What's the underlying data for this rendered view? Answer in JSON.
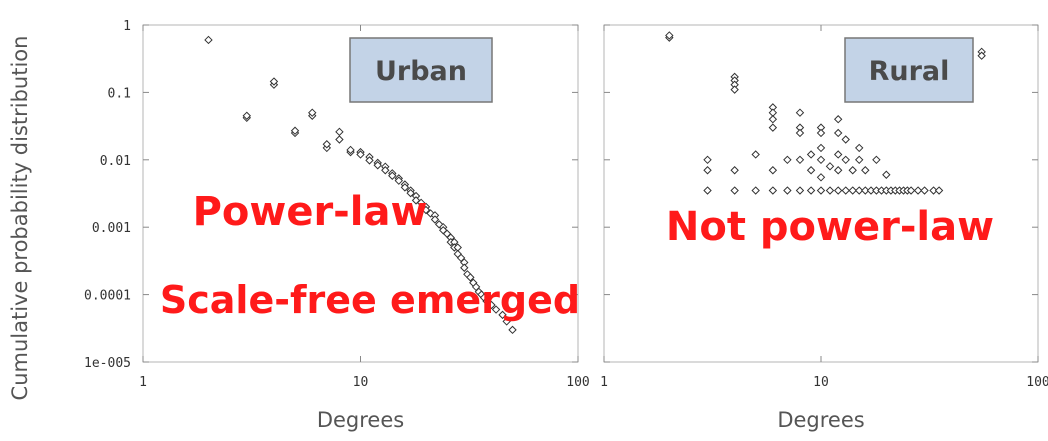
{
  "y_axis_label": "Cumulative probability distribution",
  "chart_data": [
    {
      "type": "scatter",
      "panel": "left",
      "region_label": "Urban",
      "annotations": [
        "Power-law",
        "Scale-free emerged"
      ],
      "xlabel": "Degrees",
      "x_scale": "log",
      "y_scale": "log",
      "xlim": [
        1,
        100
      ],
      "ylim": [
        1e-05,
        1
      ],
      "x_ticks": [
        "1",
        "10",
        "100"
      ],
      "y_ticks": [
        "1",
        "0.1",
        "0.01",
        "0.001",
        "0.0001",
        "1e-005"
      ],
      "grid": false,
      "points": [
        [
          2,
          0.6
        ],
        [
          3,
          0.042
        ],
        [
          3,
          0.045
        ],
        [
          4,
          0.13
        ],
        [
          4,
          0.145
        ],
        [
          5,
          0.025
        ],
        [
          5,
          0.027
        ],
        [
          6,
          0.045
        ],
        [
          6,
          0.05
        ],
        [
          7,
          0.015
        ],
        [
          7,
          0.017
        ],
        [
          8,
          0.02
        ],
        [
          8,
          0.026
        ],
        [
          9,
          0.013
        ],
        [
          9,
          0.014
        ],
        [
          10,
          0.013
        ],
        [
          10,
          0.012
        ],
        [
          11,
          0.011
        ],
        [
          11,
          0.0098
        ],
        [
          12,
          0.009
        ],
        [
          12,
          0.0083
        ],
        [
          13,
          0.0079
        ],
        [
          13,
          0.007
        ],
        [
          14,
          0.0063
        ],
        [
          14,
          0.0058
        ],
        [
          15,
          0.0053
        ],
        [
          15,
          0.0049
        ],
        [
          16,
          0.0043
        ],
        [
          16,
          0.0039
        ],
        [
          17,
          0.0035
        ],
        [
          17,
          0.0032
        ],
        [
          18,
          0.0029
        ],
        [
          18,
          0.0025
        ],
        [
          19,
          0.0023
        ],
        [
          20,
          0.002
        ],
        [
          20,
          0.0018
        ],
        [
          21,
          0.0016
        ],
        [
          22,
          0.0015
        ],
        [
          22,
          0.0013
        ],
        [
          23,
          0.0011
        ],
        [
          24,
          0.001
        ],
        [
          24,
          0.0009
        ],
        [
          25,
          0.0008
        ],
        [
          26,
          0.0007
        ],
        [
          26,
          0.0006
        ],
        [
          27,
          0.0006
        ],
        [
          27,
          0.0005
        ],
        [
          28,
          0.0005
        ],
        [
          28,
          0.0004
        ],
        [
          29,
          0.00035
        ],
        [
          30,
          0.0003
        ],
        [
          30,
          0.00025
        ],
        [
          31,
          0.0002
        ],
        [
          32,
          0.00018
        ],
        [
          33,
          0.00015
        ],
        [
          34,
          0.00013
        ],
        [
          35,
          0.00011
        ],
        [
          36,
          0.0001
        ],
        [
          37,
          9e-05
        ],
        [
          38,
          8e-05
        ],
        [
          40,
          7e-05
        ],
        [
          42,
          6e-05
        ],
        [
          45,
          5e-05
        ],
        [
          47,
          4e-05
        ],
        [
          50,
          3e-05
        ]
      ]
    },
    {
      "type": "scatter",
      "panel": "right",
      "region_label": "Rural",
      "annotations": [
        "Not power-law"
      ],
      "xlabel": "Degrees",
      "x_scale": "log",
      "y_scale": "log",
      "xlim": [
        1,
        100
      ],
      "ylim": [
        1e-05,
        1
      ],
      "x_ticks": [
        "1",
        "10",
        "100"
      ],
      "grid": false,
      "points": [
        [
          2,
          0.65
        ],
        [
          2,
          0.7
        ],
        [
          4,
          0.17
        ],
        [
          4,
          0.15
        ],
        [
          4,
          0.13
        ],
        [
          4,
          0.11
        ],
        [
          3,
          0.007
        ],
        [
          3,
          0.01
        ],
        [
          3,
          0.0035
        ],
        [
          4,
          0.007
        ],
        [
          4,
          0.0035
        ],
        [
          5,
          0.012
        ],
        [
          5,
          0.0035
        ],
        [
          6,
          0.06
        ],
        [
          6,
          0.05
        ],
        [
          6,
          0.04
        ],
        [
          6,
          0.03
        ],
        [
          6,
          0.007
        ],
        [
          6,
          0.0035
        ],
        [
          7,
          0.01
        ],
        [
          7,
          0.0035
        ],
        [
          8,
          0.05
        ],
        [
          8,
          0.03
        ],
        [
          8,
          0.025
        ],
        [
          8,
          0.01
        ],
        [
          8,
          0.0035
        ],
        [
          9,
          0.012
        ],
        [
          9,
          0.007
        ],
        [
          9,
          0.0035
        ],
        [
          10,
          0.03
        ],
        [
          10,
          0.025
        ],
        [
          10,
          0.015
        ],
        [
          10,
          0.01
        ],
        [
          10,
          0.0055
        ],
        [
          10,
          0.0035
        ],
        [
          11,
          0.008
        ],
        [
          11,
          0.0035
        ],
        [
          12,
          0.04
        ],
        [
          12,
          0.025
        ],
        [
          12,
          0.012
        ],
        [
          12,
          0.007
        ],
        [
          12,
          0.0035
        ],
        [
          13,
          0.02
        ],
        [
          13,
          0.01
        ],
        [
          13,
          0.0035
        ],
        [
          14,
          0.007
        ],
        [
          14,
          0.0035
        ],
        [
          15,
          0.015
        ],
        [
          15,
          0.01
        ],
        [
          15,
          0.0035
        ],
        [
          16,
          0.007
        ],
        [
          16,
          0.0035
        ],
        [
          17,
          0.0035
        ],
        [
          18,
          0.01
        ],
        [
          18,
          0.0035
        ],
        [
          19,
          0.0035
        ],
        [
          20,
          0.006
        ],
        [
          20,
          0.0035
        ],
        [
          21,
          0.0035
        ],
        [
          22,
          0.0035
        ],
        [
          23,
          0.0035
        ],
        [
          24,
          0.0035
        ],
        [
          25,
          0.0035
        ],
        [
          26,
          0.0035
        ],
        [
          28,
          0.0035
        ],
        [
          30,
          0.0035
        ],
        [
          33,
          0.0035
        ],
        [
          35,
          0.0035
        ],
        [
          55,
          0.4
        ],
        [
          55,
          0.35
        ]
      ]
    }
  ]
}
